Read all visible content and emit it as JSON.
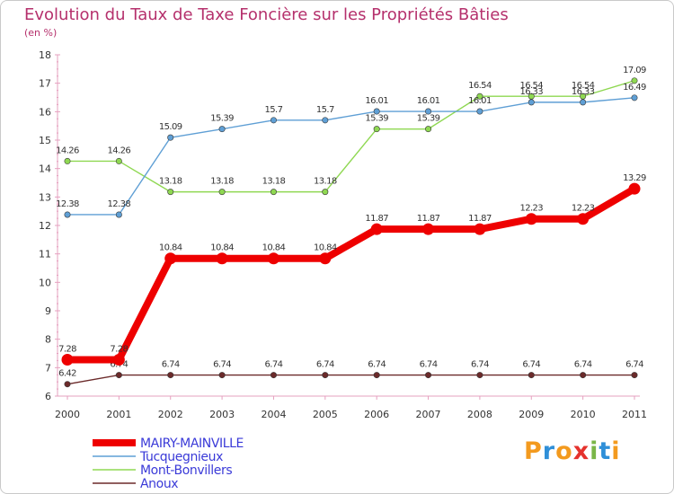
{
  "title": "Evolution du Taux de Taxe Foncière sur les Propriétés Bâties",
  "subtitle": "(en %)",
  "logo": {
    "letters": [
      "P",
      "r",
      "o",
      "x",
      "i",
      "t",
      "i"
    ],
    "colors": [
      "#f39a1e",
      "#2f8fd8",
      "#f39a1e",
      "#e5322d",
      "#7ab648",
      "#2f8fd8",
      "#f39a1e"
    ]
  },
  "chart_data": {
    "type": "line",
    "title": "Evolution du Taux de Taxe Foncière sur les Propriétés Bâties",
    "ylabel": "(en %)",
    "categories": [
      "2000",
      "2001",
      "2002",
      "2003",
      "2004",
      "2005",
      "2006",
      "2007",
      "2008",
      "2009",
      "2010",
      "2011"
    ],
    "ylim": [
      6,
      18
    ],
    "yticks": [
      6,
      7,
      8,
      9,
      10,
      11,
      12,
      13,
      14,
      15,
      16,
      17,
      18
    ],
    "series": [
      {
        "name": "Anoux",
        "color": "#6b2a2a",
        "values": [
          6.42,
          6.74,
          6.74,
          6.74,
          6.74,
          6.74,
          6.74,
          6.74,
          6.74,
          6.74,
          6.74,
          6.74
        ],
        "labels": [
          "6.42",
          "6.74",
          "6.74",
          "6.74",
          "6.74",
          "6.74",
          "6.74",
          "6.74",
          "6.74",
          "6.74",
          "6.74",
          "6.74"
        ]
      },
      {
        "name": "Mont-Bonvillers",
        "color": "#8fd852",
        "values": [
          14.26,
          14.26,
          13.18,
          13.18,
          13.18,
          13.18,
          15.39,
          15.39,
          16.54,
          16.54,
          16.54,
          17.09
        ],
        "labels": [
          "14.26",
          "14.26",
          "13.18",
          "13.18",
          "13.18",
          "13.18",
          "15.39",
          "15.39",
          "16.54",
          "16.54",
          "16.54",
          "17.09"
        ]
      },
      {
        "name": "Tucquegnieux",
        "color": "#5f9fd5",
        "values": [
          12.38,
          12.38,
          15.09,
          15.39,
          15.7,
          15.7,
          16.01,
          16.01,
          16.01,
          16.33,
          16.33,
          16.49
        ],
        "labels": [
          "12.38",
          "12.38",
          "15.09",
          "15.39",
          "15.7",
          "15.7",
          "16.01",
          "16.01",
          "16.01",
          "16.33",
          "16.33",
          "16.49"
        ]
      },
      {
        "name": "MAIRY-MAINVILLE",
        "color": "#ee0000",
        "values": [
          7.28,
          7.28,
          10.84,
          10.84,
          10.84,
          10.84,
          11.87,
          11.87,
          11.87,
          12.23,
          12.23,
          13.29
        ],
        "labels": [
          "7.28",
          "7.28",
          "10.84",
          "10.84",
          "10.84",
          "10.84",
          "11.87",
          "11.87",
          "11.87",
          "12.23",
          "12.23",
          "13.29"
        ]
      }
    ],
    "legend": [
      "MAIRY-MAINVILLE",
      "Tucquegnieux",
      "Mont-Bonvillers",
      "Anoux"
    ],
    "legend_colors": [
      "#ee0000",
      "#5f9fd5",
      "#8fd852",
      "#6b2a2a"
    ],
    "grid": false
  }
}
